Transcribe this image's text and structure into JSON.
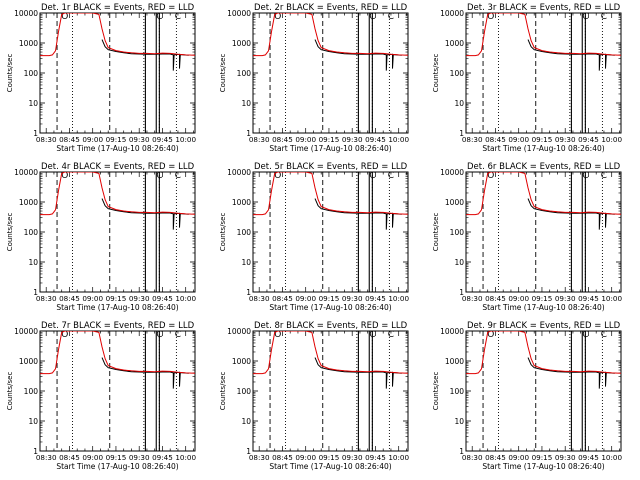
{
  "figure": {
    "y_label": "Counts/sec",
    "x_label": "Start Time (17-Aug-10 08:26:40)",
    "legend_text": "BLACK = Events, RED = LLD"
  },
  "chart_data": {
    "type": "line",
    "y_scale": "log",
    "ylim": [
      1,
      10000
    ],
    "y_ticks": [
      1,
      10,
      100,
      1000,
      10000
    ],
    "y_tick_labels": [
      "1",
      "10",
      "100",
      "1000",
      "10000"
    ],
    "x_range_minutes": [
      -4,
      96
    ],
    "x_ticks_minutes": [
      0,
      15,
      30,
      45,
      60,
      75,
      90
    ],
    "x_tick_labels": [
      "08:30",
      "08:45",
      "09:00",
      "09:15",
      "09:30",
      "09:45",
      "10:00"
    ],
    "x_minor_step_minutes": 5,
    "marker_lines": [
      {
        "style": "dashed",
        "t": 7
      },
      {
        "style": "dotted",
        "t": 17
      },
      {
        "style": "dashed",
        "t": 41
      },
      {
        "style": "dotted",
        "t": 63
      },
      {
        "style": "dotted",
        "t": 73
      },
      {
        "style": "solid",
        "t": 64
      },
      {
        "style": "solid",
        "t": 71
      },
      {
        "style": "solid",
        "t": 73
      },
      {
        "style": "dotted",
        "t": 84
      }
    ],
    "markers_in_plot": [
      {
        "symbol": "O",
        "t": 12,
        "y": 11000
      },
      {
        "symbol": "C",
        "t": 73,
        "y": 11000
      },
      {
        "symbol": "C",
        "t": 85,
        "y": 11000
      }
    ],
    "series_red_lld": {
      "t": [
        -4,
        2,
        4,
        6,
        8,
        10,
        12,
        14,
        30,
        34,
        36,
        38,
        40,
        45,
        50,
        55,
        60,
        65,
        70,
        75,
        80,
        85,
        90,
        96
      ],
      "y": [
        380,
        380,
        400,
        550,
        2500,
        9000,
        12000,
        12000,
        12000,
        9000,
        3000,
        1200,
        700,
        560,
        500,
        470,
        450,
        450,
        440,
        460,
        450,
        420,
        400,
        390
      ]
    },
    "series_black_events": {
      "t": [
        36,
        38,
        40,
        45,
        50,
        55,
        60,
        65,
        70,
        75,
        80,
        82,
        82,
        82.5,
        86,
        86,
        86.5,
        92
      ],
      "y": [
        1300,
        750,
        600,
        520,
        470,
        440,
        430,
        420,
        420,
        430,
        430,
        400,
        120,
        400,
        420,
        140,
        410,
        390
      ]
    },
    "panels": [
      {
        "title": "Det. 1r"
      },
      {
        "title": "Det. 2r"
      },
      {
        "title": "Det. 3r"
      },
      {
        "title": "Det. 4r"
      },
      {
        "title": "Det. 5r"
      },
      {
        "title": "Det. 6r"
      },
      {
        "title": "Det. 7r"
      },
      {
        "title": "Det. 8r"
      },
      {
        "title": "Det. 9r"
      }
    ]
  }
}
